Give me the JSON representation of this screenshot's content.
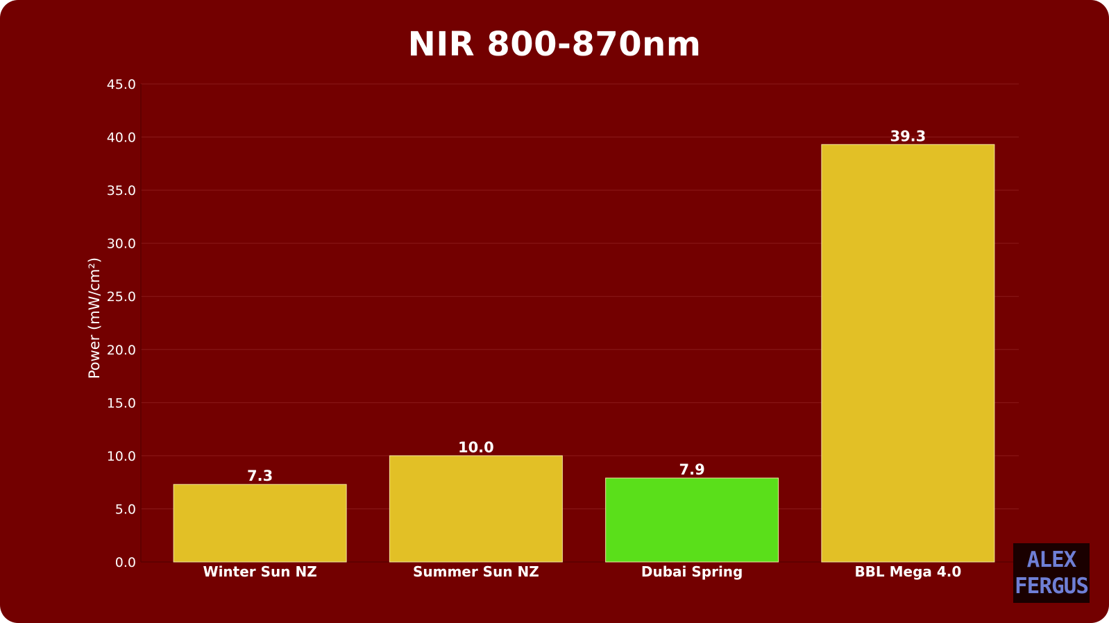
{
  "chart_data": {
    "type": "bar",
    "title": "NIR 800-870nm",
    "xlabel": "",
    "ylabel": "Power (mW/cm²)",
    "ylim": [
      0,
      45
    ],
    "yticks": [
      "0.0",
      "5.0",
      "10.0",
      "15.0",
      "20.0",
      "25.0",
      "30.0",
      "35.0",
      "40.0",
      "45.0"
    ],
    "categories": [
      "Winter Sun NZ",
      "Summer Sun NZ",
      "Dubai Spring",
      "BBL Mega 4.0"
    ],
    "values": [
      7.3,
      10.0,
      7.9,
      39.3
    ],
    "value_labels": [
      "7.3",
      "10.0",
      "7.9",
      "39.3"
    ],
    "bar_colors": [
      "#e2c026",
      "#e2c026",
      "#5adf1a",
      "#e2c026"
    ],
    "grid": true,
    "background_color": "#730000"
  },
  "watermark": {
    "line1": "ALEX",
    "line2": "FERGUS"
  }
}
